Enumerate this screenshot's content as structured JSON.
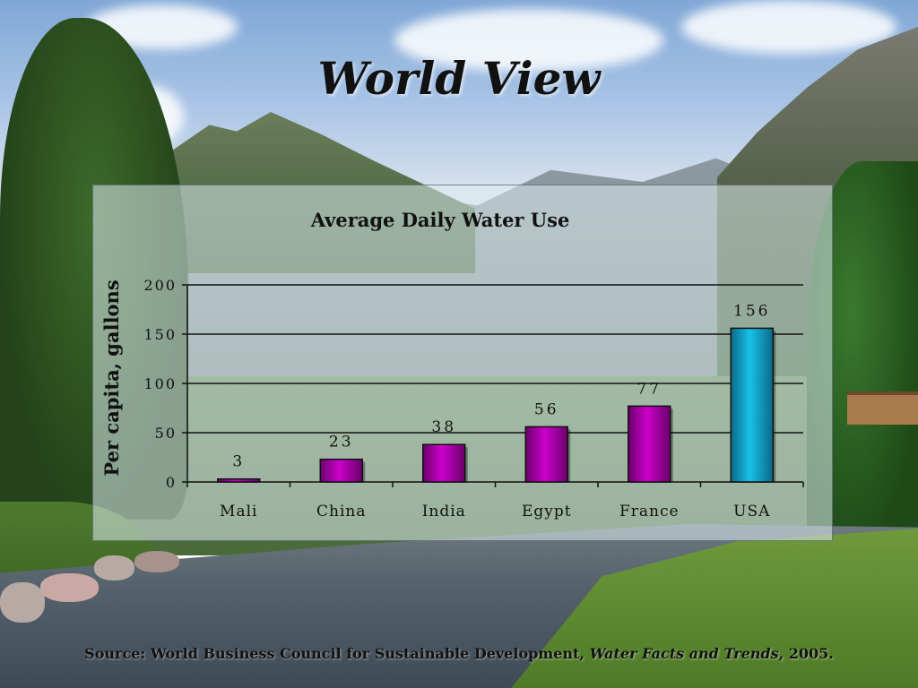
{
  "slide": {
    "title": "World View"
  },
  "source": {
    "prefix": "Source: World Business Council for Sustainable Development, ",
    "publication": "Water Facts and Trends",
    "suffix": ", 2005."
  },
  "chart_data": {
    "type": "bar",
    "title": "Average Daily Water Use",
    "xlabel": "",
    "ylabel": "Per capita, gallons",
    "ylim": [
      0,
      200
    ],
    "yticks": [
      "0",
      "50",
      "100",
      "150",
      "200"
    ],
    "grid": true,
    "categories": [
      "Mali",
      "China",
      "India",
      "Egypt",
      "France",
      "USA"
    ],
    "values": [
      3,
      23,
      38,
      56,
      77,
      156
    ],
    "value_labels": [
      "3",
      "23",
      "38",
      "56",
      "77",
      "156"
    ],
    "colors": {
      "default_bar": "#cc00cc",
      "highlight_bar": "#18c0e8",
      "highlight_index": 5
    }
  }
}
